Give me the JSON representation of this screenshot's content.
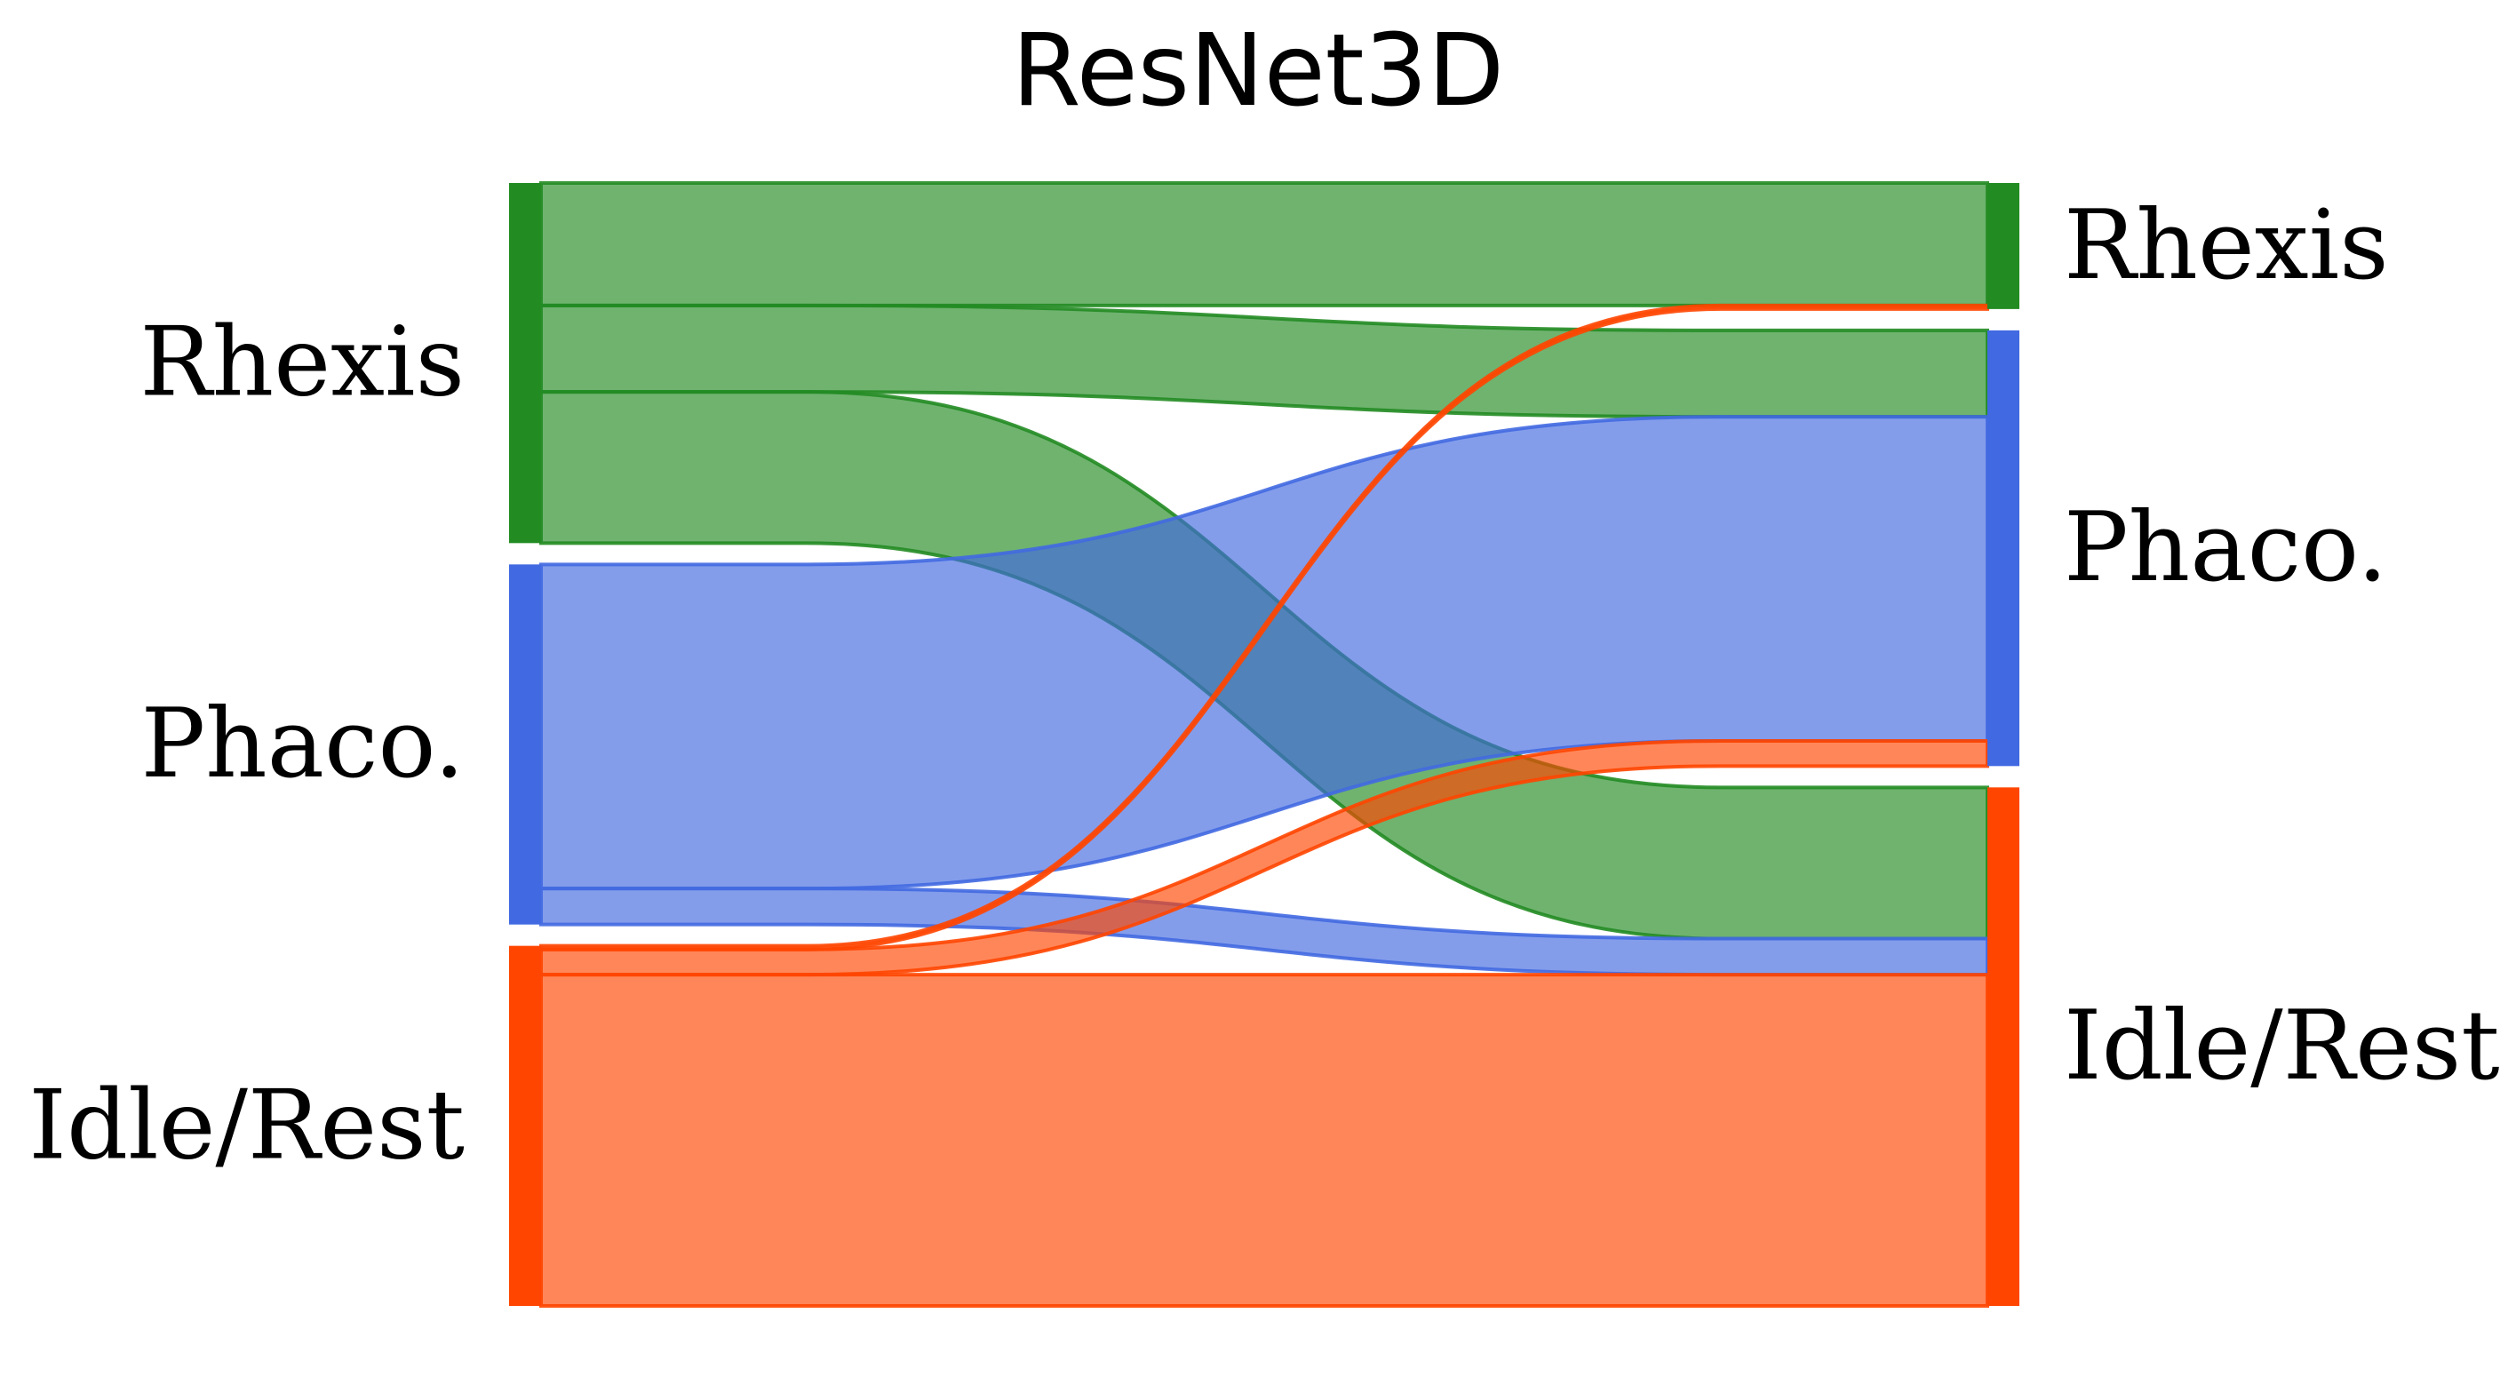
{
  "chart_data": {
    "type": "sankey",
    "title": "ResNet3D",
    "colors": {
      "Rhexis": "#228B22",
      "Phaco.": "#4169E1",
      "Idle/Rest": "#FF4500"
    },
    "source_nodes": [
      "Rhexis",
      "Phaco.",
      "Idle/Rest"
    ],
    "target_nodes": [
      "Rhexis",
      "Phaco.",
      "Idle/Rest"
    ],
    "flows": [
      {
        "source": "Rhexis",
        "target": "Rhexis",
        "value": 0.34
      },
      {
        "source": "Rhexis",
        "target": "Phaco.",
        "value": 0.24
      },
      {
        "source": "Rhexis",
        "target": "Idle/Rest",
        "value": 0.42
      },
      {
        "source": "Phaco.",
        "target": "Phaco.",
        "value": 0.9
      },
      {
        "source": "Phaco.",
        "target": "Idle/Rest",
        "value": 0.1
      },
      {
        "source": "Idle/Rest",
        "target": "Rhexis",
        "value": 0.01
      },
      {
        "source": "Idle/Rest",
        "target": "Phaco.",
        "value": 0.07
      },
      {
        "source": "Idle/Rest",
        "target": "Idle/Rest",
        "value": 0.92
      }
    ]
  }
}
